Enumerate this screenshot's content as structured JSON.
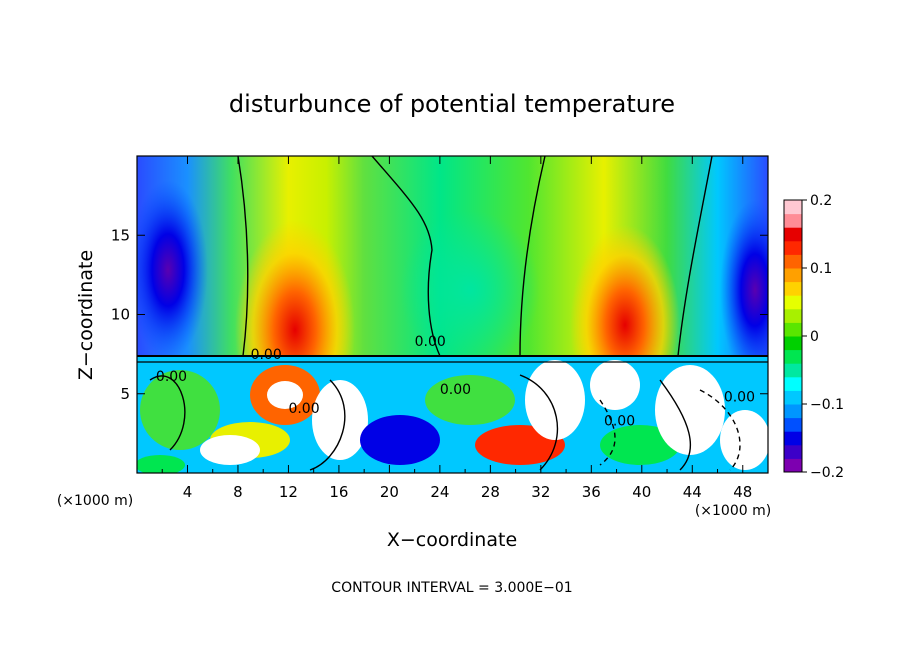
{
  "chart_data": {
    "type": "heatmap",
    "title": "disturbunce of potential temperature",
    "xlabel": "X−coordinate",
    "ylabel": "Z−coordinate",
    "x_unit_left": "(×1000 m)",
    "x_unit_right": "(×1000 m)",
    "footer": "CONTOUR INTERVAL = 3.000E−01",
    "xlim": [
      0,
      50
    ],
    "ylim": [
      0,
      20
    ],
    "x_ticks": [
      4,
      8,
      12,
      16,
      20,
      24,
      28,
      32,
      36,
      40,
      44,
      48
    ],
    "y_ticks": [
      5,
      10,
      15
    ],
    "colorbar": {
      "range": [
        -0.2,
        0.2
      ],
      "tick_values": [
        0.2,
        0.1,
        0,
        -0.1,
        -0.2
      ],
      "tick_labels": [
        "0.2",
        "0.1",
        "0",
        "−0.1",
        "−0.2"
      ],
      "colors": [
        "#7d00b0",
        "#3c00c8",
        "#0000e6",
        "#0050ff",
        "#0096ff",
        "#00c8ff",
        "#00ffff",
        "#00e8a0",
        "#00e650",
        "#00d000",
        "#5ae600",
        "#a8f000",
        "#e6ff00",
        "#ffd200",
        "#ffa000",
        "#ff6400",
        "#ff2800",
        "#e60000",
        "#ff8c96",
        "#ffc8d2"
      ]
    },
    "contour_labels": [
      {
        "text": "0.00",
        "x": 22,
        "y": 8.0
      },
      {
        "text": "0.00",
        "x": 9,
        "y": 7.2
      },
      {
        "text": "0.00",
        "x": 1.5,
        "y": 5.8
      },
      {
        "text": "0.00",
        "x": 12,
        "y": 3.8
      },
      {
        "text": "0.00",
        "x": 24,
        "y": 5.0
      },
      {
        "text": "0.00",
        "x": 37,
        "y": 3.0
      },
      {
        "text": "0.00",
        "x": 46.5,
        "y": 4.5
      }
    ],
    "upper_boundary_contours_x": [
      9,
      22,
      30,
      43
    ]
  }
}
